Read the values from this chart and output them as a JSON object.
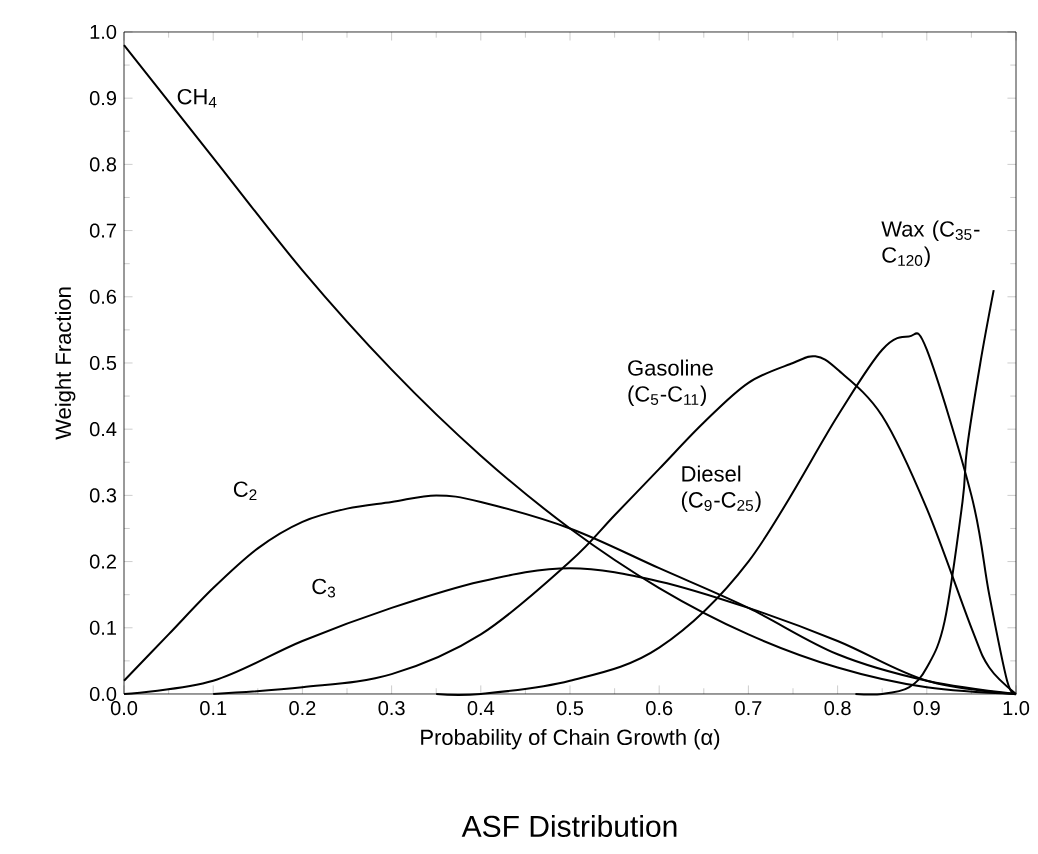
{
  "chart_data": {
    "type": "line",
    "title": "ASF Distribution",
    "xlabel": "Probability of Chain Growth (α)",
    "ylabel": "Weight Fraction",
    "xlim": [
      0,
      1
    ],
    "ylim": [
      0,
      1
    ],
    "xticks": [
      {
        "value": 0,
        "label": "0.0"
      },
      {
        "value": 0.1,
        "label": "0.1"
      },
      {
        "value": 0.2,
        "label": "0.2"
      },
      {
        "value": 0.3,
        "label": "0.3"
      },
      {
        "value": 0.4,
        "label": "0.4"
      },
      {
        "value": 0.5,
        "label": "0.5"
      },
      {
        "value": 0.6,
        "label": "0.6"
      },
      {
        "value": 0.7,
        "label": "0.7"
      },
      {
        "value": 0.8,
        "label": "0.8"
      },
      {
        "value": 0.9,
        "label": "0.9"
      },
      {
        "value": 1,
        "label": "1.0"
      }
    ],
    "yticks": [
      {
        "value": 0,
        "label": "0.0"
      },
      {
        "value": 0.1,
        "label": "0.1"
      },
      {
        "value": 0.2,
        "label": "0.2"
      },
      {
        "value": 0.3,
        "label": "0.3"
      },
      {
        "value": 0.4,
        "label": "0.4"
      },
      {
        "value": 0.5,
        "label": "0.5"
      },
      {
        "value": 0.6,
        "label": "0.6"
      },
      {
        "value": 0.7,
        "label": "0.7"
      },
      {
        "value": 0.8,
        "label": "0.8"
      },
      {
        "value": 0.9,
        "label": "0.9"
      },
      {
        "value": 1,
        "label": "1.0"
      }
    ],
    "series": [
      {
        "name": "CH$_{4}$",
        "color": "#000000",
        "x": [
          0,
          0.1,
          0.2,
          0.3,
          0.4,
          0.5,
          0.6,
          0.7,
          0.8,
          0.9,
          1
        ],
        "values": [
          0.98,
          0.81,
          0.64,
          0.49,
          0.36,
          0.25,
          0.16,
          0.09,
          0.04,
          0.01,
          0
        ]
      },
      {
        "name": "C$_{2}$",
        "color": "#000000",
        "x": [
          0,
          0.05,
          0.1,
          0.15,
          0.2,
          0.25,
          0.3,
          0.35,
          0.4,
          0.5,
          0.6,
          0.7,
          0.8,
          0.9,
          1
        ],
        "values": [
          0.02,
          0.09,
          0.16,
          0.22,
          0.26,
          0.28,
          0.29,
          0.3,
          0.29,
          0.25,
          0.19,
          0.13,
          0.06,
          0.02,
          0
        ]
      },
      {
        "name": "C$_{3}$",
        "color": "#000000",
        "x": [
          0,
          0.1,
          0.2,
          0.3,
          0.4,
          0.5,
          0.6,
          0.7,
          0.8,
          0.9,
          1
        ],
        "values": [
          0,
          0.02,
          0.08,
          0.13,
          0.17,
          0.19,
          0.17,
          0.13,
          0.08,
          0.02,
          0
        ]
      },
      {
        "name": "Gasoline (C$_{5}$-C$_{11}$)",
        "color": "#000000",
        "x": [
          0.1,
          0.2,
          0.3,
          0.4,
          0.5,
          0.55,
          0.6,
          0.65,
          0.7,
          0.75,
          0.775,
          0.8,
          0.85,
          0.9,
          0.95,
          0.97,
          1
        ],
        "values": [
          0,
          0.01,
          0.03,
          0.09,
          0.2,
          0.27,
          0.34,
          0.41,
          0.47,
          0.5,
          0.51,
          0.49,
          0.42,
          0.28,
          0.1,
          0.04,
          0
        ]
      },
      {
        "name": "Diesel (C$_{9}$-C$_{25}$)",
        "color": "#000000",
        "x": [
          0.35,
          0.4,
          0.5,
          0.6,
          0.7,
          0.8,
          0.85,
          0.88,
          0.9,
          0.95,
          0.97,
          0.99,
          1
        ],
        "values": [
          0,
          0,
          0.02,
          0.07,
          0.2,
          0.42,
          0.52,
          0.54,
          0.52,
          0.3,
          0.15,
          0.02,
          0
        ]
      },
      {
        "name": "Wax (C$_{35}$-C$_{120}$)",
        "color": "#000000",
        "x": [
          0.82,
          0.85,
          0.88,
          0.9,
          0.92,
          0.94,
          0.945,
          0.96,
          0.975
        ],
        "values": [
          0,
          0,
          0.01,
          0.04,
          0.11,
          0.29,
          0.37,
          0.5,
          0.61
        ]
      }
    ]
  }
}
